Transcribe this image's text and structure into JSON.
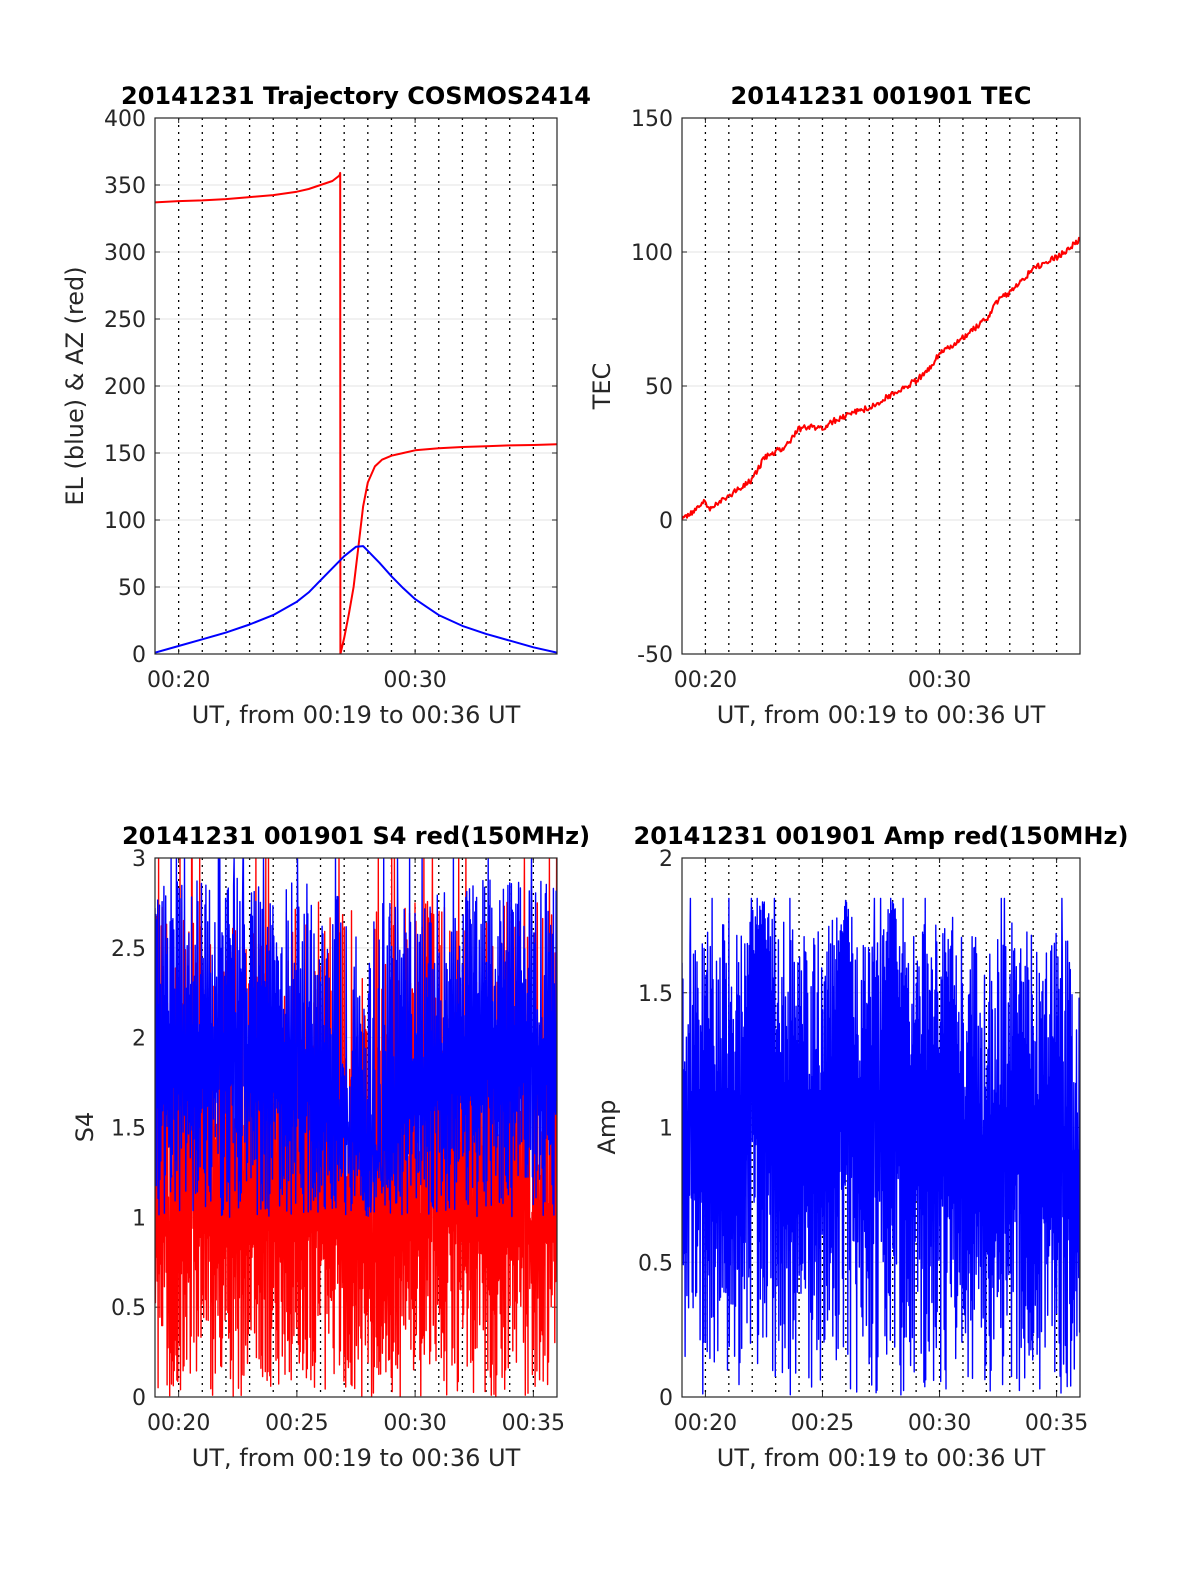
{
  "chart_data": [
    {
      "type": "line",
      "title": "20141231 Trajectory COSMOS2414",
      "xlabel": "UT, from 00:19 to 00:36 UT",
      "ylabel": "EL (blue) & AZ (red)",
      "xlim": [
        19.0,
        36.0
      ],
      "ylim": [
        0,
        400
      ],
      "x_ticks": [
        {
          "value": 20,
          "label": "00:20"
        },
        {
          "value": 30,
          "label": "00:30"
        }
      ],
      "y_ticks": [
        "0",
        "50",
        "100",
        "150",
        "200",
        "250",
        "300",
        "350",
        "400"
      ],
      "x_units": "minutes after 00:00 UT",
      "grid": "dotted vertical every minute, light horizontal",
      "series": [
        {
          "color": "#ff0000",
          "x": [
            19.0,
            20.0,
            21.0,
            22.0,
            23.0,
            24.0,
            25.0,
            25.5,
            26.0,
            26.5,
            26.8,
            26.83,
            26.84,
            27.0,
            27.2,
            27.4,
            27.6,
            27.8,
            28.0,
            28.3,
            28.6,
            29.0,
            29.5,
            30.0,
            31.0,
            32.0,
            33.0,
            34.0,
            35.0,
            36.0
          ],
          "values": [
            337,
            338,
            338.5,
            339.5,
            341,
            342.5,
            345,
            347,
            350,
            353,
            357,
            359,
            0,
            12,
            30,
            50,
            80,
            110,
            128,
            140,
            145,
            148,
            150,
            152,
            153.5,
            154.5,
            155,
            155.7,
            156,
            156.5
          ]
        },
        {
          "color": "#0000ff",
          "x": [
            19.0,
            20.0,
            21.0,
            22.0,
            23.0,
            24.0,
            25.0,
            25.5,
            26.0,
            26.5,
            27.0,
            27.5,
            27.8,
            28.0,
            28.5,
            29.0,
            29.5,
            30.0,
            30.5,
            31.0,
            32.0,
            33.0,
            34.0,
            35.0,
            36.0
          ],
          "values": [
            1,
            6,
            11,
            16,
            22,
            29,
            39,
            46,
            55,
            64,
            73,
            80,
            80.5,
            77,
            68,
            58,
            49,
            41,
            35,
            29,
            21,
            15,
            10,
            5,
            1
          ]
        }
      ]
    },
    {
      "type": "line",
      "title": "20141231 001901 TEC",
      "xlabel": "UT, from 00:19 to 00:36 UT",
      "ylabel": "TEC",
      "xlim": [
        19.0,
        36.0
      ],
      "ylim": [
        -50,
        150
      ],
      "x_ticks": [
        {
          "value": 20,
          "label": "00:20"
        },
        {
          "value": 30,
          "label": "00:30"
        }
      ],
      "y_ticks": [
        "-50",
        "0",
        "50",
        "100",
        "150"
      ],
      "x_units": "minutes after 00:00 UT",
      "grid": "dotted vertical every minute, light horizontal",
      "series": [
        {
          "color": "#ff0000",
          "x": [
            19.0,
            19.5,
            19.9,
            20.2,
            21.0,
            22.0,
            22.5,
            23.5,
            24.0,
            24.5,
            25.0,
            25.5,
            26.0,
            27.0,
            28.0,
            29.0,
            29.5,
            30.0,
            31.0,
            32.0,
            32.5,
            33.0,
            33.5,
            34.0,
            35.0,
            35.5,
            36.0
          ],
          "values": [
            0,
            3,
            7,
            4,
            9,
            15,
            23,
            28,
            34,
            35,
            34,
            37,
            39,
            42,
            47,
            52,
            56,
            62,
            68,
            75,
            82,
            85,
            89,
            94,
            98,
            101,
            105
          ]
        }
      ]
    },
    {
      "type": "line",
      "title": "20141231 001901 S4 red(150MHz)",
      "xlabel": "UT, from 00:19 to 00:36 UT",
      "ylabel": "S4",
      "xlim": [
        19.0,
        36.0
      ],
      "ylim": [
        0,
        3
      ],
      "x_ticks": [
        {
          "value": 20,
          "label": "00:20"
        },
        {
          "value": 25,
          "label": "00:25"
        },
        {
          "value": 30,
          "label": "00:30"
        },
        {
          "value": 35,
          "label": "00:35"
        }
      ],
      "y_ticks": [
        "0",
        "0.5",
        "1",
        "1.5",
        "2",
        "2.5",
        "3"
      ],
      "x_units": "minutes after 00:00 UT",
      "grid": "dotted vertical every minute, light horizontal",
      "series": [
        {
          "color": "#ff0000",
          "x": [
            19.0,
            19.5,
            20.0,
            20.5,
            21.0,
            21.5,
            22.0,
            22.5,
            23.0,
            23.5,
            24.0,
            24.5,
            25.0,
            25.5,
            26.0,
            26.5,
            27.0,
            27.5,
            28.0,
            28.5,
            29.0,
            29.5,
            30.0,
            30.5,
            31.0,
            31.5,
            32.0,
            32.5,
            33.0,
            33.5,
            34.0,
            34.5,
            35.0,
            35.5,
            36.0
          ],
          "values": [
            1.5,
            1.5,
            1.55,
            1.6,
            1.6,
            1.6,
            1.55,
            1.55,
            1.5,
            1.6,
            1.55,
            1.6,
            1.6,
            1.6,
            1.6,
            1.55,
            1.4,
            1.35,
            1.3,
            1.35,
            1.3,
            1.4,
            1.5,
            1.55,
            1.6,
            1.65,
            1.6,
            1.55,
            1.55,
            1.5,
            1.5,
            1.55,
            1.5,
            1.5,
            1.5
          ],
          "fluctuation_range": [
            0,
            3
          ]
        },
        {
          "color": "#0000ff",
          "x": [
            19.0,
            19.5,
            20.0,
            20.5,
            21.0,
            21.5,
            22.0,
            22.5,
            23.0,
            23.5,
            24.0,
            24.5,
            25.0,
            25.5,
            26.0,
            26.5,
            27.0,
            27.5,
            28.0,
            28.5,
            29.0,
            29.5,
            30.0,
            30.5,
            31.0,
            31.5,
            32.0,
            32.5,
            33.0,
            33.5,
            34.0,
            34.5,
            35.0,
            35.5,
            36.0
          ],
          "values": [
            2.3,
            2.3,
            2.2,
            2.25,
            2.3,
            2.2,
            2.25,
            2.3,
            2.2,
            2.25,
            2.2,
            2.1,
            2.2,
            2.1,
            2.0,
            1.9,
            1.8,
            1.7,
            1.6,
            1.6,
            1.7,
            1.9,
            2.0,
            2.1,
            2.1,
            2.15,
            2.2,
            2.25,
            2.3,
            2.3,
            2.25,
            2.3,
            2.2,
            2.25,
            2.2
          ],
          "fluctuation_range": [
            1.0,
            3
          ]
        }
      ]
    },
    {
      "type": "line",
      "title": "20141231 001901 Amp red(150MHz)",
      "xlabel": "UT, from 00:19 to 00:36 UT",
      "ylabel": "Amp",
      "xlim": [
        19.0,
        36.0
      ],
      "ylim": [
        0,
        2
      ],
      "x_ticks": [
        {
          "value": 20,
          "label": "00:20"
        },
        {
          "value": 25,
          "label": "00:25"
        },
        {
          "value": 30,
          "label": "00:30"
        },
        {
          "value": 35,
          "label": "00:35"
        }
      ],
      "y_ticks": [
        "0",
        "0.5",
        "1",
        "1.5",
        "2"
      ],
      "x_units": "minutes after 00:00 UT",
      "grid": "dotted vertical every minute, light horizontal",
      "series": [
        {
          "color": "#0000ff",
          "x": [
            19.0,
            19.5,
            20.0,
            20.5,
            21.0,
            21.5,
            22.0,
            22.5,
            23.0,
            23.5,
            24.0,
            24.5,
            25.0,
            25.5,
            26.0,
            26.5,
            27.0,
            27.5,
            28.0,
            28.5,
            29.0,
            29.5,
            30.0,
            30.5,
            31.0,
            31.5,
            32.0,
            32.5,
            33.0,
            33.5,
            34.0,
            34.5,
            35.0,
            35.5,
            36.0
          ],
          "values": [
            1.2,
            1.3,
            1.3,
            1.3,
            1.3,
            1.3,
            1.65,
            1.8,
            1.4,
            1.3,
            1.4,
            1.3,
            1.3,
            1.45,
            1.85,
            1.3,
            1.35,
            1.3,
            1.85,
            1.25,
            1.45,
            1.3,
            1.35,
            1.6,
            1.25,
            1.2,
            1.2,
            1.15,
            1.3,
            1.45,
            1.3,
            1.15,
            1.25,
            1.15,
            1.15
          ],
          "fluctuation_range": [
            0,
            1.85
          ]
        }
      ]
    }
  ]
}
